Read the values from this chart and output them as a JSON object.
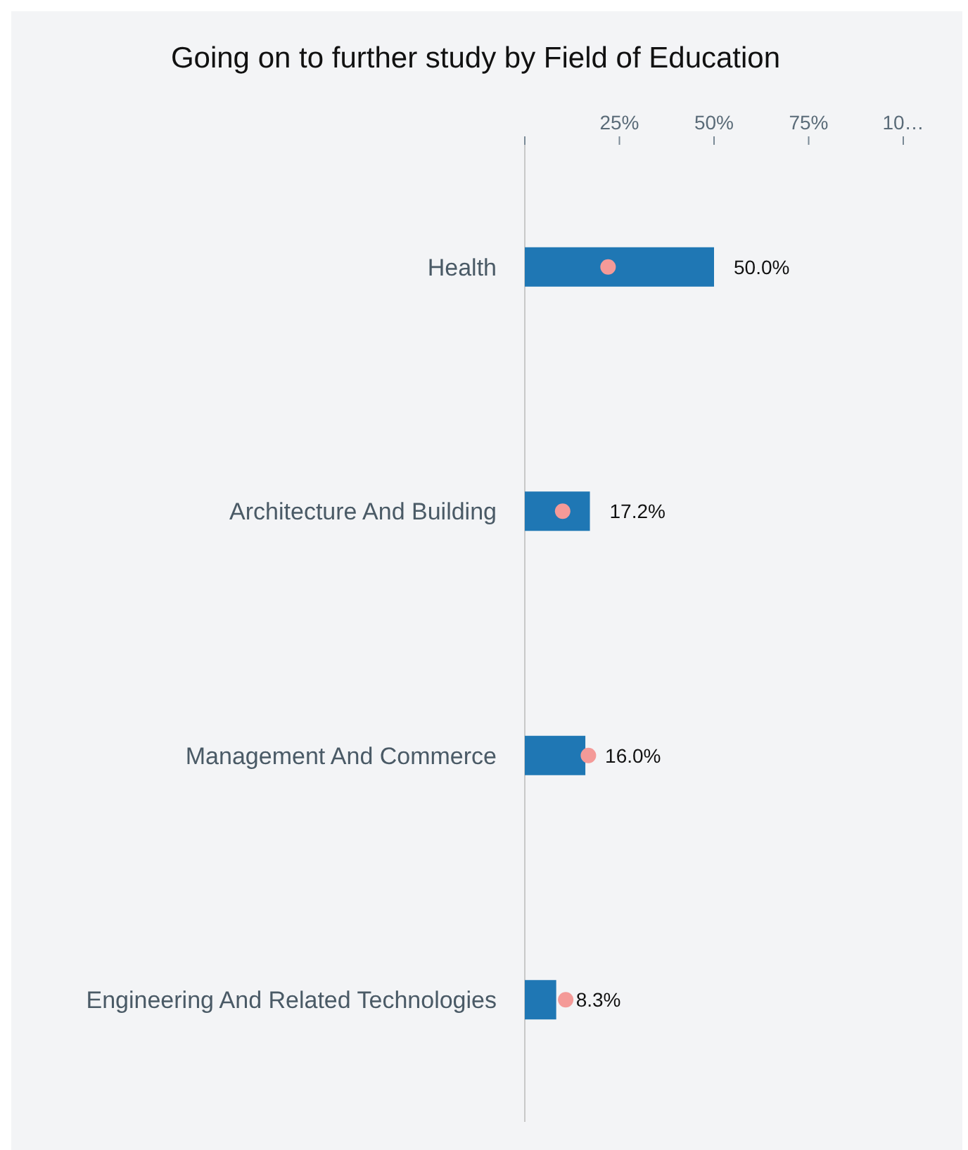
{
  "chart_data": {
    "type": "bar",
    "orientation": "horizontal",
    "title": "Going on to further study by Field of Education",
    "categories": [
      "Health",
      "Architecture And Building",
      "Management And Commerce",
      "Engineering And Related Technologies"
    ],
    "series": [
      {
        "color": "#1f77b4",
        "values": [
          50.0,
          17.2,
          16.0,
          8.3
        ],
        "value_labels": [
          "50.0%",
          "17.2%",
          "16.0%",
          "8.3%"
        ]
      },
      {
        "type": "scatter",
        "color": "#f49a98",
        "values": [
          22,
          10,
          16.8,
          10.8
        ],
        "marker": "circle"
      }
    ],
    "xlim": [
      0,
      100
    ],
    "xticks": [
      {
        "value": 0,
        "label": null
      },
      {
        "value": 25,
        "label": "25%"
      },
      {
        "value": 50,
        "label": "50%"
      },
      {
        "value": 75,
        "label": "75%"
      },
      {
        "value": 100,
        "label": "10…"
      }
    ],
    "grid": false
  }
}
